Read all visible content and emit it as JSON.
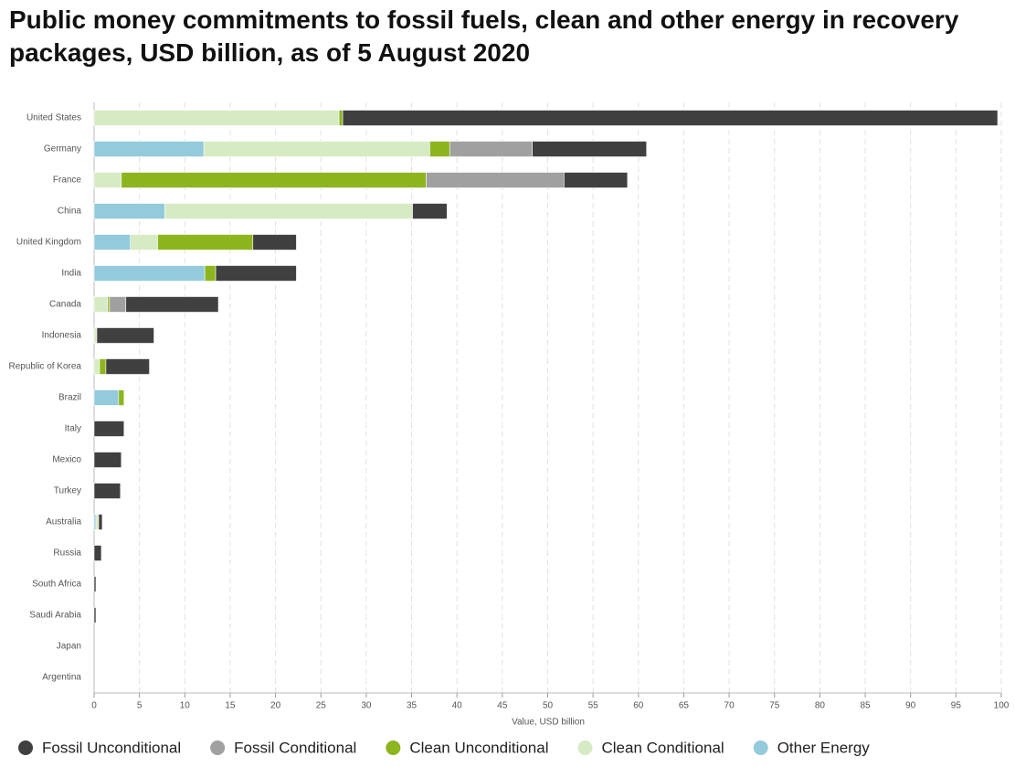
{
  "chart_data": {
    "type": "stacked-barh",
    "title": "Public money commitments to fossil fuels, clean and other energy in recovery packages, USD billion, as of 5 August 2020",
    "x_label": "Value, USD billion",
    "categories": [
      "United States",
      "Germany",
      "France",
      "China",
      "United Kingdom",
      "India",
      "Canada",
      "Indonesia",
      "Republic of Korea",
      "Brazil",
      "Italy",
      "Mexico",
      "Turkey",
      "Australia",
      "Russia",
      "South Africa",
      "Saudi Arabia",
      "Japan",
      "Argentina"
    ],
    "series": [
      {
        "name": "Fossil Unconditional",
        "color": "#404040",
        "values": [
          72.2,
          12.6,
          7.0,
          3.8,
          4.8,
          8.9,
          10.2,
          6.3,
          4.8,
          0,
          3.3,
          3.0,
          2.9,
          0.4,
          0.8,
          0.2,
          0.2,
          0,
          0
        ]
      },
      {
        "name": "Fossil Conditional",
        "color": "#a0a0a0",
        "values": [
          0,
          9.1,
          15.2,
          0,
          0,
          0,
          1.8,
          0,
          0,
          0,
          0,
          0,
          0,
          0,
          0,
          0,
          0,
          0,
          0
        ]
      },
      {
        "name": "Clean Unconditional",
        "color": "#8db51e",
        "values": [
          0.4,
          2.2,
          33.6,
          0,
          10.5,
          1.2,
          0.2,
          0,
          0.7,
          0.6,
          0,
          0,
          0,
          0,
          0,
          0,
          0,
          0,
          0
        ]
      },
      {
        "name": "Clean Conditional",
        "color": "#d6ebc4",
        "values": [
          27.0,
          24.9,
          3.0,
          27.3,
          3.0,
          0,
          1.5,
          0.3,
          0.6,
          0,
          0,
          0,
          0,
          0.3,
          0,
          0,
          0,
          0,
          0
        ]
      },
      {
        "name": "Other Energy",
        "color": "#93cbdc",
        "values": [
          0,
          12.1,
          0,
          7.8,
          4.0,
          12.2,
          0,
          0,
          0,
          2.7,
          0,
          0,
          0,
          0.2,
          0,
          0,
          0,
          0,
          0
        ]
      }
    ],
    "xlim": [
      0,
      100
    ],
    "xticks": [
      0,
      5,
      10,
      15,
      20,
      25,
      30,
      35,
      40,
      45,
      50,
      55,
      60,
      65,
      70,
      75,
      80,
      85,
      90,
      95,
      100
    ],
    "grid": true
  }
}
